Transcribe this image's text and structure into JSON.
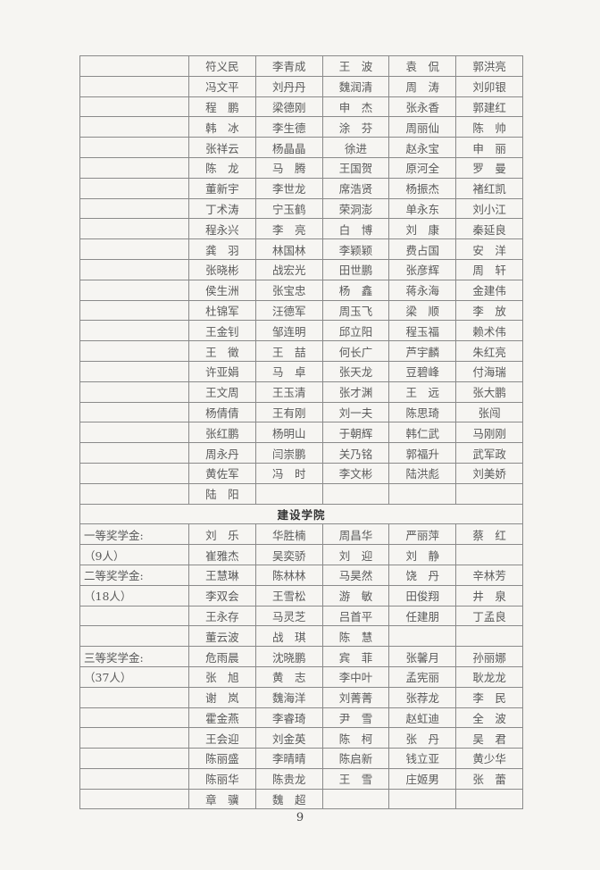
{
  "section1": {
    "rows": [
      {
        "label": "",
        "names": [
          "符义民",
          "李青成",
          "王　波",
          "袁　侃",
          "郭洪亮"
        ]
      },
      {
        "label": "",
        "names": [
          "冯文平",
          "刘丹丹",
          "魏润清",
          "周　涛",
          "刘卯银"
        ]
      },
      {
        "label": "",
        "names": [
          "程　鹏",
          "梁德刚",
          "申　杰",
          "张永香",
          "郭建红"
        ]
      },
      {
        "label": "",
        "names": [
          "韩　冰",
          "李生德",
          "涂　芬",
          "周丽仙",
          "陈　帅"
        ]
      },
      {
        "label": "",
        "names": [
          "张祥云",
          "杨晶晶",
          "徐进",
          "赵永宝",
          "申　丽"
        ]
      },
      {
        "label": "",
        "names": [
          "陈　龙",
          "马　腾",
          "王国贺",
          "原河全",
          "罗　曼"
        ]
      },
      {
        "label": "",
        "names": [
          "董新宇",
          "李世龙",
          "席浩贤",
          "杨振杰",
          "褚红凯"
        ]
      },
      {
        "label": "",
        "names": [
          "丁术涛",
          "宁玉鹤",
          "荣洞澎",
          "单永东",
          "刘小江"
        ]
      },
      {
        "label": "",
        "names": [
          "程永兴",
          "李　亮",
          "白　博",
          "刘　康",
          "秦延良"
        ]
      },
      {
        "label": "",
        "names": [
          "龚　羽",
          "林国林",
          "李颖颖",
          "费占国",
          "安　洋"
        ]
      },
      {
        "label": "",
        "names": [
          "张晓彬",
          "战宏光",
          "田世鹏",
          "张彦辉",
          "周　轩"
        ]
      },
      {
        "label": "",
        "names": [
          "侯生洲",
          "张宝忠",
          "杨　鑫",
          "蒋永海",
          "金建伟"
        ]
      },
      {
        "label": "",
        "names": [
          "杜锦军",
          "汪德军",
          "周玉飞",
          "梁　顺",
          "李　放"
        ]
      },
      {
        "label": "",
        "names": [
          "王金钊",
          "邹连明",
          "邱立阳",
          "程玉福",
          "赖术伟"
        ]
      },
      {
        "label": "",
        "names": [
          "王　徵",
          "王　喆",
          "何长广",
          "芦宇麟",
          "朱红亮"
        ]
      },
      {
        "label": "",
        "names": [
          "许亚娟",
          "马　卓",
          "张天龙",
          "豆碧峰",
          "付海瑞"
        ]
      },
      {
        "label": "",
        "names": [
          "王文周",
          "王玉清",
          "张才渊",
          "王　远",
          "张大鹏"
        ]
      },
      {
        "label": "",
        "names": [
          "杨倩倩",
          "王有刚",
          "刘一夫",
          "陈思琦",
          "张闯"
        ]
      },
      {
        "label": "",
        "names": [
          "张红鹏",
          "杨明山",
          "于朝辉",
          "韩仁武",
          "马刚刚"
        ]
      },
      {
        "label": "",
        "names": [
          "周永丹",
          "闫崇鹏",
          "关乃铭",
          "郭福升",
          "武军政"
        ]
      },
      {
        "label": "",
        "names": [
          "黄佐军",
          "冯　时",
          "李文彬",
          "陆洪彪",
          "刘美娇"
        ]
      },
      {
        "label": "",
        "names": [
          "陆　阳",
          "",
          "",
          "",
          ""
        ]
      }
    ]
  },
  "section2": {
    "title": "建设学院",
    "rows": [
      {
        "label": "一等奖学金:",
        "names": [
          "刘　乐",
          "华胜楠",
          "周昌华",
          "严丽萍",
          "蔡　红"
        ]
      },
      {
        "label": "（9人）",
        "names": [
          "崔雅杰",
          "吴奕骄",
          "刘　迎",
          "刘　静",
          ""
        ]
      },
      {
        "label": "二等奖学金:",
        "names": [
          "王慧琳",
          "陈林林",
          "马昊然",
          "饶　丹",
          "辛林芳"
        ]
      },
      {
        "label": "（18人）",
        "names": [
          "李双会",
          "王雪松",
          "游　敏",
          "田俊翔",
          "井　泉"
        ]
      },
      {
        "label": "",
        "names": [
          "王永存",
          "马灵芝",
          "吕首平",
          "任建朋",
          "丁孟良"
        ]
      },
      {
        "label": "",
        "names": [
          "董云波",
          "战　琪",
          "陈　慧",
          "",
          ""
        ]
      },
      {
        "label": "三等奖学金:",
        "names": [
          "危雨晨",
          "沈晓鹏",
          "宾　菲",
          "张馨月",
          "孙丽娜"
        ]
      },
      {
        "label": "（37人）",
        "names": [
          "张　旭",
          "黄　志",
          "李中叶",
          "孟宪丽",
          "耿龙龙"
        ]
      },
      {
        "label": "",
        "names": [
          "谢　岚",
          "魏海洋",
          "刘菁菁",
          "张荐龙",
          "李　民"
        ]
      },
      {
        "label": "",
        "names": [
          "霍金燕",
          "李睿琦",
          "尹　雪",
          "赵虹迪",
          "全　波"
        ]
      },
      {
        "label": "",
        "names": [
          "王会迎",
          "刘金英",
          "陈　柯",
          "张　丹",
          "吴　君"
        ]
      },
      {
        "label": "",
        "names": [
          "陈丽盛",
          "李晴晴",
          "陈启新",
          "钱立亚",
          "黄少华"
        ]
      },
      {
        "label": "",
        "names": [
          "陈丽华",
          "陈贵龙",
          "王　雪",
          "庄姬男",
          "张　蕾"
        ]
      },
      {
        "label": "",
        "names": [
          "章　骥",
          "魏　超",
          "",
          "",
          ""
        ]
      }
    ]
  },
  "page_number": "9"
}
